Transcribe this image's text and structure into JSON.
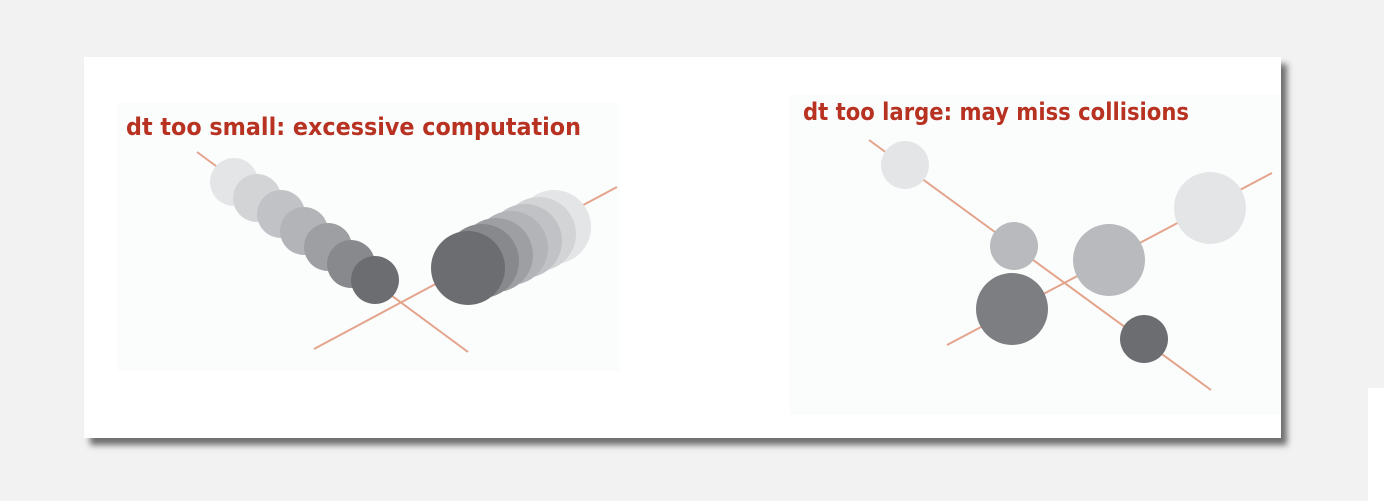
{
  "panels": {
    "left": {
      "caption": "dt too small: excessive computation"
    },
    "right": {
      "caption": "dt too large: may miss collisions"
    }
  },
  "colors": {
    "caption": "#b83222",
    "trajectory": "#e4a48c",
    "ball_shades": [
      "#e3e5e7",
      "#d2d4d6",
      "#c0c2c5",
      "#b2b4b7",
      "#9d9fa2",
      "#87898c",
      "#6b6d70"
    ]
  }
}
